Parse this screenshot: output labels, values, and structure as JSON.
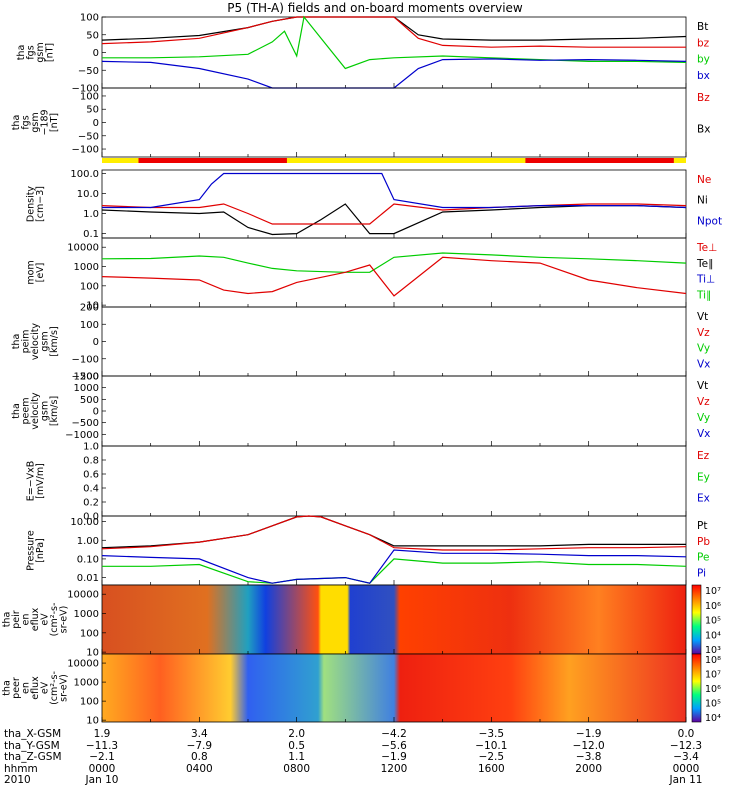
{
  "page": {
    "title": "P5 (TH-A) fields and on-board moments overview"
  },
  "panels": [
    {
      "id": "fgs",
      "ylabel": [
        "tha",
        "fgs",
        "gsm",
        "[nT]"
      ],
      "ylim": [
        -100,
        100
      ],
      "log": false,
      "ticks": [
        {
          "v": 100,
          "l": "100"
        },
        {
          "v": 50,
          "l": "50"
        },
        {
          "v": 0,
          "l": "0"
        },
        {
          "v": -50,
          "l": "−50"
        },
        {
          "v": -100,
          "l": "−100"
        }
      ],
      "legend": [
        {
          "name": "Bt",
          "color": "#000000"
        },
        {
          "name": "bz",
          "color": "#e00000"
        },
        {
          "name": "by",
          "color": "#00cc00"
        },
        {
          "name": "bx",
          "color": "#0000cc"
        }
      ]
    },
    {
      "id": "fgs_dc",
      "ylabel": [
        "tha",
        "fgs",
        "gsm",
        "−189",
        "[nT]"
      ],
      "ylim": [
        -130,
        130
      ],
      "log": false,
      "ticks": [
        {
          "v": 100,
          "l": "100"
        },
        {
          "v": 50,
          "l": "50"
        },
        {
          "v": 0,
          "l": "0"
        },
        {
          "v": -50,
          "l": "−50"
        },
        {
          "v": -100,
          "l": "−100"
        }
      ],
      "legend": [
        {
          "name": "Bz",
          "color": "#e00000"
        },
        {
          "name": "Bx",
          "color": "#000000"
        }
      ]
    },
    {
      "id": "density",
      "ylabel": [
        "Density",
        "[cm−3]"
      ],
      "ylim": [
        0.06,
        150
      ],
      "log": true,
      "ticks": [
        {
          "v": 100,
          "l": "100.0"
        },
        {
          "v": 10,
          "l": "10.0"
        },
        {
          "v": 1,
          "l": "1.0"
        },
        {
          "v": 0.1,
          "l": "0.1"
        }
      ],
      "legend": [
        {
          "name": "Ne",
          "color": "#e00000"
        },
        {
          "name": "Ni",
          "color": "#000000"
        },
        {
          "name": "Npot",
          "color": "#0000cc"
        }
      ]
    },
    {
      "id": "temp",
      "ylabel": [
        "mom",
        "[eV]"
      ],
      "ylim": [
        8,
        30000
      ],
      "log": true,
      "ticks": [
        {
          "v": 10000,
          "l": "10000"
        },
        {
          "v": 1000,
          "l": "1000"
        },
        {
          "v": 100,
          "l": "100"
        },
        {
          "v": 10,
          "l": "10"
        }
      ],
      "legend": [
        {
          "name": "Te⊥",
          "color": "#e00000"
        },
        {
          "name": "Te∥",
          "color": "#000000"
        },
        {
          "name": "Ti⊥",
          "color": "#0000cc"
        },
        {
          "name": "Ti∥",
          "color": "#00cc00"
        }
      ]
    },
    {
      "id": "peim_v",
      "ylabel": [
        "tha",
        "peim",
        "velocity",
        "gsm",
        "[km/s]"
      ],
      "ylim": [
        -200,
        200
      ],
      "log": false,
      "ticks": [
        {
          "v": 200,
          "l": "200"
        },
        {
          "v": 100,
          "l": "100"
        },
        {
          "v": 0,
          "l": "0"
        },
        {
          "v": -100,
          "l": "−100"
        },
        {
          "v": -200,
          "l": "−200"
        }
      ],
      "legend": [
        {
          "name": "Vt",
          "color": "#000000"
        },
        {
          "name": "Vz",
          "color": "#e00000"
        },
        {
          "name": "Vy",
          "color": "#00cc00"
        },
        {
          "name": "Vx",
          "color": "#0000cc"
        }
      ]
    },
    {
      "id": "peem_v",
      "ylabel": [
        "tha",
        "peem",
        "velocity",
        "gsm",
        "[km/s]"
      ],
      "ylim": [
        -1500,
        1500
      ],
      "log": false,
      "ticks": [
        {
          "v": 1500,
          "l": "1500"
        },
        {
          "v": 1000,
          "l": "1000"
        },
        {
          "v": 500,
          "l": "500"
        },
        {
          "v": 0,
          "l": "0"
        },
        {
          "v": -500,
          "l": "−500"
        },
        {
          "v": -1000,
          "l": "−1000"
        }
      ],
      "legend": [
        {
          "name": "Vt",
          "color": "#000000"
        },
        {
          "name": "Vz",
          "color": "#e00000"
        },
        {
          "name": "Vy",
          "color": "#00cc00"
        },
        {
          "name": "Vx",
          "color": "#0000cc"
        }
      ]
    },
    {
      "id": "efield",
      "ylabel": [
        "E=−VxB",
        "[mV/m]"
      ],
      "ylim": [
        0,
        1
      ],
      "log": false,
      "ticks": [
        {
          "v": 1,
          "l": "1.0"
        },
        {
          "v": 0.8,
          "l": "0.8"
        },
        {
          "v": 0.6,
          "l": "0.6"
        },
        {
          "v": 0.4,
          "l": "0.4"
        },
        {
          "v": 0.2,
          "l": "0.2"
        },
        {
          "v": 0,
          "l": "0.0"
        }
      ],
      "legend": [
        {
          "name": "Ez",
          "color": "#e00000"
        },
        {
          "name": "Ey",
          "color": "#00cc00"
        },
        {
          "name": "Ex",
          "color": "#0000cc"
        }
      ]
    },
    {
      "id": "pressure",
      "ylabel": [
        "Pressure",
        "[nPa]"
      ],
      "ylim": [
        0.004,
        20
      ],
      "log": true,
      "ticks": [
        {
          "v": 10,
          "l": "10.00"
        },
        {
          "v": 1,
          "l": "1.00"
        },
        {
          "v": 0.1,
          "l": "0.10"
        },
        {
          "v": 0.01,
          "l": "0.01"
        }
      ],
      "legend": [
        {
          "name": "Pt",
          "color": "#000000"
        },
        {
          "name": "Pb",
          "color": "#e00000"
        },
        {
          "name": "Pe",
          "color": "#00cc00"
        },
        {
          "name": "Pi",
          "color": "#0000cc"
        }
      ]
    },
    {
      "id": "peir_spec",
      "ylabel": [
        "tha",
        "peir",
        "en",
        "eflux",
        "eV",
        "(cm²-s-",
        "sr-eV)"
      ],
      "ylim": [
        8,
        30000
      ],
      "log": true,
      "ticks": [
        {
          "v": 10000,
          "l": "10000"
        },
        {
          "v": 1000,
          "l": "1000"
        },
        {
          "v": 100,
          "l": "100"
        },
        {
          "v": 10,
          "l": "10"
        }
      ],
      "colorbar": [
        "10⁷",
        "10⁶",
        "10⁵",
        "10⁴",
        "10³"
      ]
    },
    {
      "id": "peer_spec",
      "ylabel": [
        "tha",
        "peer",
        "en",
        "eflux",
        "eV",
        "(cm²-s-",
        "sr-eV)"
      ],
      "ylim": [
        8,
        30000
      ],
      "log": true,
      "ticks": [
        {
          "v": 10000,
          "l": "10000"
        },
        {
          "v": 1000,
          "l": "1000"
        },
        {
          "v": 100,
          "l": "100"
        },
        {
          "v": 10,
          "l": "10"
        }
      ],
      "colorbar": [
        "10⁸",
        "10⁷",
        "10⁶",
        "10⁵",
        "10⁴"
      ]
    }
  ],
  "footer": {
    "row_labels": [
      "tha_X-GSM",
      "tha_Y-GSM",
      "tha_Z-GSM",
      "hhmm",
      "2010"
    ],
    "columns": [
      {
        "hour": 0,
        "values": [
          "1.9",
          "−11.3",
          "−2.1",
          "0000",
          "Jan 10"
        ]
      },
      {
        "hour": 4,
        "values": [
          "3.4",
          "−7.9",
          "0.8",
          "0400",
          ""
        ]
      },
      {
        "hour": 8,
        "values": [
          "2.0",
          "0.5",
          "1.1",
          "0800",
          ""
        ]
      },
      {
        "hour": 12,
        "values": [
          "−4.2",
          "−5.6",
          "−1.9",
          "1200",
          ""
        ]
      },
      {
        "hour": 16,
        "values": [
          "−3.5",
          "−10.1",
          "−2.5",
          "1600",
          ""
        ]
      },
      {
        "hour": 20,
        "values": [
          "−1.9",
          "−12.0",
          "−3.8",
          "2000",
          ""
        ]
      },
      {
        "hour": 24,
        "values": [
          "0.0",
          "−12.3",
          "−3.4",
          "0000",
          "Jan 11"
        ]
      }
    ]
  },
  "chart_data": {
    "type": "line",
    "title": "P5 (TH-A) fields and on-board moments overview",
    "x_unit": "hours UT 2010-01-10",
    "xlim": [
      0,
      24
    ],
    "series": [
      {
        "panel": "fgs",
        "name": "Bt",
        "x": [
          0,
          2,
          4,
          6,
          7,
          8,
          10,
          11,
          12,
          13,
          14,
          16,
          18,
          20,
          22,
          24
        ],
        "values": [
          35,
          40,
          48,
          70,
          88,
          100,
          100,
          100,
          100,
          50,
          38,
          35,
          35,
          38,
          40,
          45
        ]
      },
      {
        "panel": "fgs",
        "name": "bz",
        "x": [
          0,
          2,
          4,
          6,
          7,
          8,
          10,
          11,
          12,
          13,
          14,
          16,
          18,
          20,
          22,
          24
        ],
        "values": [
          25,
          30,
          40,
          70,
          88,
          100,
          100,
          100,
          100,
          40,
          20,
          15,
          18,
          15,
          15,
          15
        ]
      },
      {
        "panel": "fgs",
        "name": "by",
        "x": [
          0,
          2,
          4,
          6,
          7,
          7.5,
          8,
          8.3,
          9,
          10,
          11,
          12,
          14,
          16,
          18,
          20,
          22,
          24
        ],
        "values": [
          -15,
          -15,
          -12,
          -5,
          30,
          60,
          -10,
          100,
          40,
          -45,
          -20,
          -15,
          -10,
          -15,
          -20,
          -25,
          -25,
          -28
        ]
      },
      {
        "panel": "fgs",
        "name": "bx",
        "x": [
          0,
          2,
          4,
          6,
          7,
          8,
          10,
          11,
          12,
          13,
          14,
          16,
          18,
          20,
          22,
          24
        ],
        "values": [
          -25,
          -28,
          -45,
          -75,
          -100,
          -100,
          -100,
          -100,
          -100,
          -45,
          -20,
          -18,
          -22,
          -20,
          -22,
          -25
        ]
      },
      {
        "panel": "density",
        "name": "Ni",
        "x": [
          0,
          2,
          4,
          5,
          6,
          7,
          8,
          9,
          10,
          11,
          12,
          14,
          16,
          18,
          20,
          22,
          24
        ],
        "values": [
          1.5,
          1.2,
          1.0,
          1.2,
          0.2,
          0.09,
          0.1,
          0.5,
          3.0,
          0.1,
          0.1,
          1.2,
          1.5,
          2.0,
          2.5,
          2.5,
          2.0
        ]
      },
      {
        "panel": "density",
        "name": "Ne",
        "x": [
          0,
          2,
          4,
          5,
          6,
          7,
          8,
          9,
          10,
          11,
          12,
          14,
          16,
          18,
          20,
          22,
          24
        ],
        "values": [
          2.5,
          2.0,
          2.0,
          3.0,
          1.0,
          0.3,
          0.3,
          0.3,
          0.3,
          0.3,
          3.0,
          1.5,
          2.0,
          2.5,
          3.0,
          3.0,
          2.5
        ]
      },
      {
        "panel": "density",
        "name": "Npot",
        "x": [
          0,
          2,
          4,
          4.5,
          5,
          5.5,
          6,
          8,
          10,
          11,
          11.5,
          12,
          14,
          16,
          18,
          20,
          22,
          24
        ],
        "values": [
          2.0,
          2.0,
          5.0,
          30,
          100,
          100,
          100,
          100,
          100,
          100,
          100,
          5.0,
          2.0,
          2.0,
          2.5,
          2.5,
          2.5,
          2.0
        ]
      },
      {
        "panel": "temp",
        "name": "Ti∥",
        "x": [
          0,
          2,
          4,
          5,
          6,
          7,
          8,
          10,
          11,
          12,
          14,
          16,
          18,
          20,
          22,
          24
        ],
        "values": [
          2500,
          2600,
          3500,
          3000,
          1500,
          800,
          600,
          500,
          500,
          3000,
          5000,
          4000,
          3000,
          2500,
          2000,
          1500
        ]
      },
      {
        "panel": "temp",
        "name": "Te⊥",
        "x": [
          0,
          2,
          4,
          5,
          6,
          7,
          8,
          10,
          11,
          12,
          14,
          16,
          18,
          20,
          22,
          24
        ],
        "values": [
          300,
          250,
          200,
          60,
          40,
          50,
          150,
          500,
          1200,
          30,
          3000,
          2000,
          1500,
          200,
          80,
          40
        ]
      },
      {
        "panel": "pressure",
        "name": "Pt",
        "x": [
          0,
          2,
          4,
          6,
          7,
          8,
          8.5,
          9,
          10,
          11,
          12,
          14,
          16,
          18,
          20,
          22,
          24
        ],
        "values": [
          0.4,
          0.5,
          0.8,
          2,
          6,
          18,
          20,
          18,
          6,
          2,
          0.5,
          0.5,
          0.5,
          0.5,
          0.6,
          0.6,
          0.6
        ]
      },
      {
        "panel": "pressure",
        "name": "Pb",
        "x": [
          0,
          2,
          4,
          6,
          7,
          8,
          8.5,
          9,
          10,
          11,
          12,
          14,
          16,
          18,
          20,
          22,
          24
        ],
        "values": [
          0.35,
          0.45,
          0.8,
          2,
          6,
          18,
          20,
          18,
          6,
          2,
          0.4,
          0.3,
          0.3,
          0.35,
          0.4,
          0.4,
          0.45
        ]
      },
      {
        "panel": "pressure",
        "name": "Pe",
        "x": [
          0,
          2,
          4,
          6,
          7,
          8,
          10,
          11,
          12,
          14,
          16,
          18,
          20,
          22,
          24
        ],
        "values": [
          0.04,
          0.04,
          0.05,
          0.006,
          0.005,
          0.008,
          0.01,
          0.005,
          0.1,
          0.06,
          0.06,
          0.07,
          0.05,
          0.05,
          0.04
        ]
      },
      {
        "panel": "pressure",
        "name": "Pi",
        "x": [
          0,
          2,
          4,
          6,
          7,
          8,
          10,
          11,
          12,
          14,
          16,
          18,
          20,
          22,
          24
        ],
        "values": [
          0.15,
          0.12,
          0.1,
          0.01,
          0.005,
          0.008,
          0.01,
          0.005,
          0.3,
          0.2,
          0.2,
          0.18,
          0.15,
          0.15,
          0.13
        ]
      }
    ]
  }
}
